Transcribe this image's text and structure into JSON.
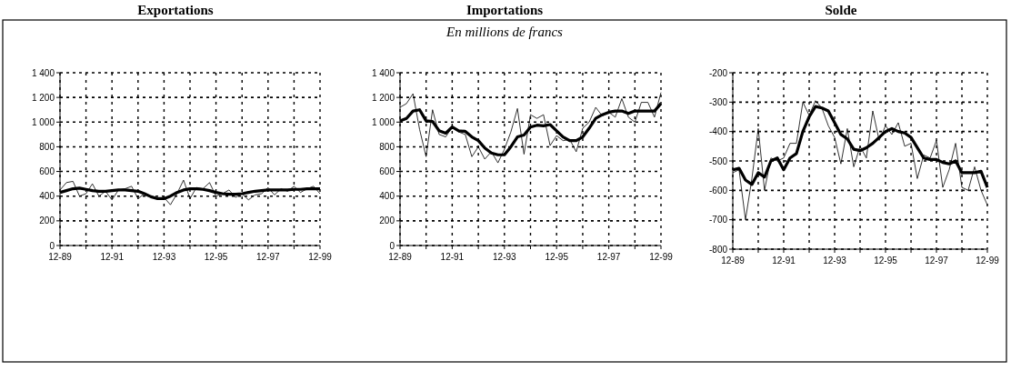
{
  "chart_data": [
    {
      "type": "line",
      "title": "Exportations",
      "x": [
        "1989-12",
        "1990-03",
        "1990-06",
        "1990-09",
        "1990-12",
        "1991-03",
        "1991-06",
        "1991-09",
        "1991-12",
        "1992-03",
        "1992-06",
        "1992-09",
        "1992-12",
        "1993-03",
        "1993-06",
        "1993-09",
        "1993-12",
        "1994-03",
        "1994-06",
        "1994-09",
        "1994-12",
        "1995-03",
        "1995-06",
        "1995-09",
        "1995-12",
        "1996-03",
        "1996-06",
        "1996-09",
        "1996-12",
        "1997-03",
        "1997-06",
        "1997-09",
        "1997-12",
        "1998-03",
        "1998-06",
        "1998-09",
        "1998-12",
        "1999-03",
        "1999-06",
        "1999-09",
        "1999-12"
      ],
      "series": [
        {
          "color": "#000000",
          "values": [
            450,
            510,
            520,
            400,
            420,
            500,
            400,
            440,
            370,
            450,
            460,
            480,
            380,
            420,
            390,
            380,
            390,
            330,
            420,
            530,
            380,
            470,
            460,
            510,
            400,
            420,
            450,
            390,
            420,
            370,
            410,
            420,
            470,
            410,
            460,
            440,
            480,
            430,
            460,
            480,
            420
          ]
        },
        {
          "color": "#000000",
          "values": [
            430,
            445,
            460,
            465,
            455,
            445,
            440,
            440,
            445,
            450,
            450,
            445,
            440,
            420,
            395,
            380,
            380,
            400,
            430,
            450,
            460,
            460,
            455,
            445,
            430,
            420,
            415,
            415,
            420,
            430,
            440,
            445,
            450,
            450,
            450,
            450,
            455,
            455,
            460,
            460,
            460
          ]
        }
      ],
      "ylim": [
        0,
        1400
      ],
      "yticks": [
        0,
        200,
        400,
        600,
        800,
        {
          "value": 1000,
          "label": "1 000"
        },
        {
          "value": 1200,
          "label": "1 200"
        },
        {
          "value": 1400,
          "label": "1 400"
        }
      ],
      "xlim": [
        "1989-12",
        "1999-12"
      ],
      "xticks": [
        {
          "value": "1989-12",
          "label": "12-89"
        },
        {
          "value": "1990-12",
          "label": null
        },
        {
          "value": "1991-12",
          "label": "12-91"
        },
        {
          "value": "1992-12",
          "label": null
        },
        {
          "value": "1993-12",
          "label": "12-93"
        },
        {
          "value": "1994-12",
          "label": null
        },
        {
          "value": "1995-12",
          "label": "12-95"
        },
        {
          "value": "1996-12",
          "label": null
        },
        {
          "value": "1997-12",
          "label": "12-97"
        },
        {
          "value": "1998-12",
          "label": null
        },
        {
          "value": "1999-12",
          "label": "12-99"
        }
      ],
      "grid": true,
      "line_style": "solid",
      "marker": "none"
    },
    {
      "type": "line",
      "title": "Importations",
      "subtitle": "En millions de francs",
      "x": [
        "1989-12",
        "1990-03",
        "1990-06",
        "1990-09",
        "1990-12",
        "1991-03",
        "1991-06",
        "1991-09",
        "1991-12",
        "1992-03",
        "1992-06",
        "1992-09",
        "1992-12",
        "1993-03",
        "1993-06",
        "1993-09",
        "1993-12",
        "1994-03",
        "1994-06",
        "1994-09",
        "1994-12",
        "1995-03",
        "1995-06",
        "1995-09",
        "1995-12",
        "1996-03",
        "1996-06",
        "1996-09",
        "1996-12",
        "1997-03",
        "1997-06",
        "1997-09",
        "1997-12",
        "1998-03",
        "1998-06",
        "1998-09",
        "1998-12",
        "1999-03",
        "1999-06",
        "1999-09",
        "1999-12"
      ],
      "series": [
        {
          "color": "#000000",
          "values": [
            1120,
            1150,
            1230,
            940,
            720,
            1100,
            900,
            880,
            960,
            920,
            900,
            720,
            800,
            700,
            760,
            670,
            780,
            920,
            1110,
            740,
            1060,
            1030,
            1060,
            810,
            890,
            850,
            860,
            760,
            950,
            1000,
            1120,
            1050,
            1080,
            1040,
            1190,
            1040,
            1000,
            1160,
            1160,
            1040,
            1240
          ]
        },
        {
          "color": "#000000",
          "values": [
            1010,
            1030,
            1090,
            1100,
            1010,
            1005,
            930,
            910,
            960,
            930,
            925,
            880,
            850,
            790,
            750,
            735,
            735,
            800,
            880,
            895,
            960,
            975,
            970,
            980,
            930,
            880,
            850,
            850,
            880,
            950,
            1030,
            1060,
            1080,
            1090,
            1090,
            1070,
            1090,
            1090,
            1090,
            1090,
            1150
          ]
        }
      ],
      "ylim": [
        0,
        1400
      ],
      "yticks": [
        0,
        200,
        400,
        600,
        800,
        {
          "value": 1000,
          "label": "1 000"
        },
        {
          "value": 1200,
          "label": "1 200"
        },
        {
          "value": 1400,
          "label": "1 400"
        }
      ],
      "xlim": [
        "1989-12",
        "1999-12"
      ],
      "xticks": [
        {
          "value": "1989-12",
          "label": "12-89"
        },
        {
          "value": "1990-12",
          "label": null
        },
        {
          "value": "1991-12",
          "label": "12-91"
        },
        {
          "value": "1992-12",
          "label": null
        },
        {
          "value": "1993-12",
          "label": "12-93"
        },
        {
          "value": "1994-12",
          "label": null
        },
        {
          "value": "1995-12",
          "label": "12-95"
        },
        {
          "value": "1996-12",
          "label": null
        },
        {
          "value": "1997-12",
          "label": "12-97"
        },
        {
          "value": "1998-12",
          "label": null
        },
        {
          "value": "1999-12",
          "label": "12-99"
        }
      ],
      "grid": true,
      "line_style": "solid",
      "marker": "none"
    },
    {
      "type": "line",
      "title": "Solde",
      "x": [
        "1989-12",
        "1990-03",
        "1990-06",
        "1990-09",
        "1990-12",
        "1991-03",
        "1991-06",
        "1991-09",
        "1991-12",
        "1992-03",
        "1992-06",
        "1992-09",
        "1992-12",
        "1993-03",
        "1993-06",
        "1993-09",
        "1993-12",
        "1994-03",
        "1994-06",
        "1994-09",
        "1994-12",
        "1995-03",
        "1995-06",
        "1995-09",
        "1995-12",
        "1996-03",
        "1996-06",
        "1996-09",
        "1996-12",
        "1997-03",
        "1997-06",
        "1997-09",
        "1997-12",
        "1998-03",
        "1998-06",
        "1998-09",
        "1998-12",
        "1999-03",
        "1999-06",
        "1999-09",
        "1999-12"
      ],
      "series": [
        {
          "color": "#000000",
          "values": [
            -540,
            -530,
            -700,
            -560,
            -390,
            -600,
            -490,
            -500,
            -490,
            -440,
            -440,
            -300,
            -345,
            -295,
            -320,
            -380,
            -420,
            -510,
            -390,
            -520,
            -450,
            -490,
            -330,
            -430,
            -380,
            -410,
            -370,
            -450,
            -440,
            -560,
            -480,
            -490,
            -430,
            -590,
            -530,
            -440,
            -590,
            -600,
            -520,
            -600,
            -650
          ]
        },
        {
          "color": "#000000",
          "values": [
            -530,
            -525,
            -565,
            -580,
            -540,
            -555,
            -500,
            -490,
            -530,
            -490,
            -475,
            -400,
            -350,
            -315,
            -320,
            -330,
            -370,
            -410,
            -425,
            -460,
            -465,
            -455,
            -440,
            -420,
            -400,
            -390,
            -400,
            -405,
            -420,
            -455,
            -490,
            -495,
            -495,
            -505,
            -510,
            -500,
            -540,
            -540,
            -540,
            -535,
            -590
          ]
        }
      ],
      "ylim": [
        -800,
        -200
      ],
      "yticks": [
        -800,
        -700,
        -600,
        -500,
        -400,
        -300,
        -200
      ],
      "xlim": [
        "1989-12",
        "1999-12"
      ],
      "xticks": [
        {
          "value": "1989-12",
          "label": "12-89"
        },
        {
          "value": "1990-12",
          "label": null
        },
        {
          "value": "1991-12",
          "label": "12-91"
        },
        {
          "value": "1992-12",
          "label": null
        },
        {
          "value": "1993-12",
          "label": "12-93"
        },
        {
          "value": "1994-12",
          "label": null
        },
        {
          "value": "1995-12",
          "label": "12-95"
        },
        {
          "value": "1996-12",
          "label": null
        },
        {
          "value": "1997-12",
          "label": "12-97"
        },
        {
          "value": "1998-12",
          "label": null
        },
        {
          "value": "1999-12",
          "label": "12-99"
        }
      ],
      "grid": true,
      "line_style": "solid",
      "marker": "none"
    }
  ]
}
